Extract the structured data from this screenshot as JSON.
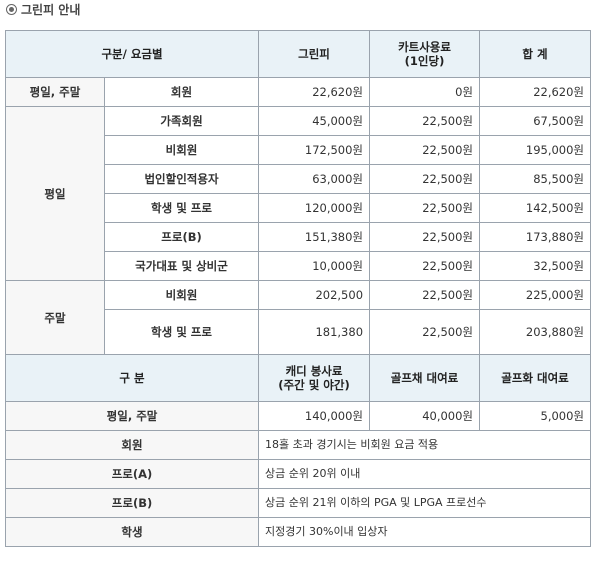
{
  "title": "그린피 안내",
  "header1": {
    "category": "구분/ 요금별",
    "greenfee": "그린피",
    "cart": "카트사용료\n(1인당)",
    "total": "합 계"
  },
  "rows": {
    "all_member": {
      "period": "평일, 주말",
      "type": "회원",
      "greenfee": "22,620원",
      "cart": "0원",
      "total": "22,620원"
    },
    "weekday": {
      "period": "평일",
      "items": [
        {
          "type": "가족회원",
          "greenfee": "45,000원",
          "cart": "22,500원",
          "total": "67,500원"
        },
        {
          "type": "비회원",
          "greenfee": "172,500원",
          "cart": "22,500원",
          "total": "195,000원"
        },
        {
          "type": "법인할인적용자",
          "greenfee": "63,000원",
          "cart": "22,500원",
          "total": "85,500원"
        },
        {
          "type": "학생 및 프로",
          "greenfee": "120,000원",
          "cart": "22,500원",
          "total": "142,500원"
        },
        {
          "type": "프로(B)",
          "greenfee": "151,380원",
          "cart": "22,500원",
          "total": "173,880원"
        },
        {
          "type": "국가대표 및 상비군",
          "greenfee": "10,000원",
          "cart": "22,500원",
          "total": "32,500원"
        }
      ]
    },
    "weekend": {
      "period": "주말",
      "items": [
        {
          "type": "비회원",
          "greenfee": "202,500",
          "cart": "22,500원",
          "total": "225,000원"
        },
        {
          "type": "학생 및 프로",
          "greenfee": "181,380",
          "cart": "22,500원",
          "total": "203,880원"
        }
      ]
    }
  },
  "header2": {
    "category": "구 분",
    "caddy": "캐디 봉사료\n(주간 및 야간)",
    "club": "골프채 대여료",
    "shoes": "골프화 대여료"
  },
  "extra_fees": {
    "period": "평일, 주말",
    "caddy": "140,000원",
    "club": "40,000원",
    "shoes": "5,000원"
  },
  "notes": [
    {
      "label": "회원",
      "text": "18홀 초과 경기시는 비회원 요금 적용"
    },
    {
      "label": "프로(A)",
      "text": "상금 순위 20위 이내"
    },
    {
      "label": "프로(B)",
      "text": "상금 순위 21위 이하의 PGA 및 LPGA 프로선수"
    },
    {
      "label": "학생",
      "text": "지정경기 30%이내 입상자"
    }
  ]
}
